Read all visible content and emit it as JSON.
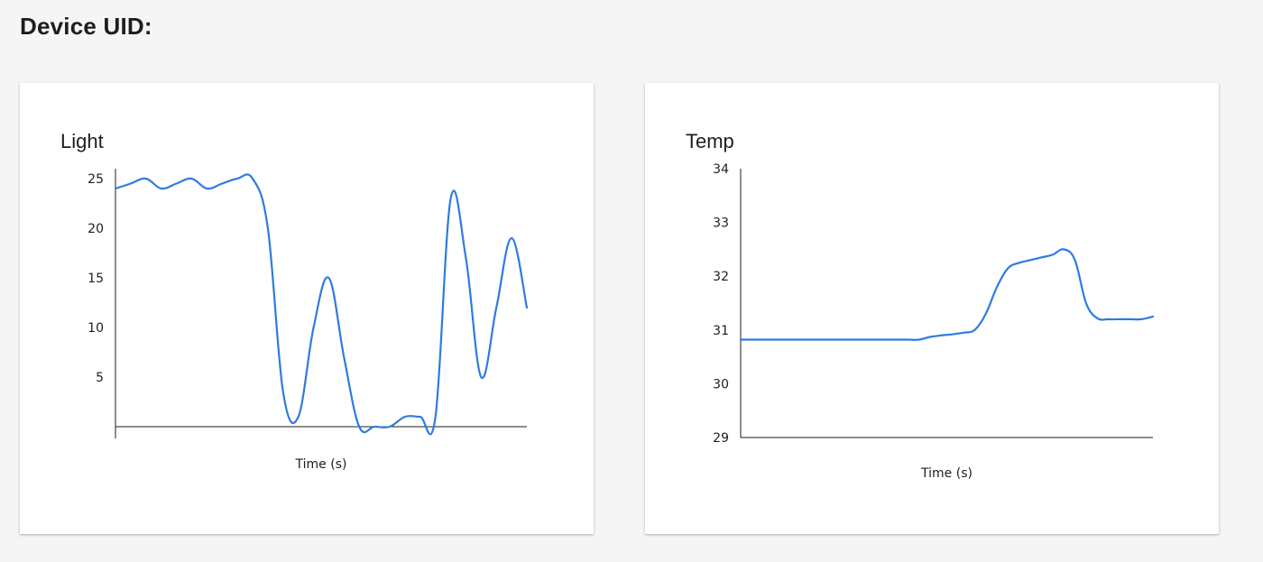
{
  "header": {
    "title": "Device UID:"
  },
  "colors": {
    "line": "#2f7be0",
    "axis": "#1e1e1e",
    "background": "#f5f5f5",
    "card": "#ffffff"
  },
  "charts": [
    {
      "id": "light",
      "title": "Light",
      "chart_data": {
        "type": "line",
        "title": "Light",
        "xlabel": "Time (s)",
        "ylabel": "",
        "ylim": [
          0,
          26
        ],
        "yticks": [
          5,
          10,
          15,
          20,
          25
        ],
        "series": [
          {
            "name": "Light",
            "values": [
              24,
              24.5,
              25,
              24,
              24.5,
              25,
              24,
              24.5,
              25,
              25,
              20,
              3.5,
              1,
              10,
              15,
              7,
              0,
              0,
              0,
              1,
              1,
              1,
              23,
              17,
              5,
              12,
              19,
              12
            ]
          }
        ]
      }
    },
    {
      "id": "temp",
      "title": "Temp",
      "chart_data": {
        "type": "line",
        "title": "Temp",
        "xlabel": "Time (s)",
        "ylabel": "",
        "ylim": [
          29,
          34
        ],
        "yticks": [
          29,
          30,
          31,
          32,
          33,
          34
        ],
        "series": [
          {
            "name": "Temp",
            "values": [
              30.82,
              30.82,
              30.82,
              30.82,
              30.82,
              30.82,
              30.82,
              30.82,
              30.82,
              30.82,
              30.82,
              30.82,
              30.82,
              30.82,
              30.82,
              30.82,
              30.82,
              30.87,
              30.9,
              30.92,
              30.95,
              31.0,
              31.3,
              31.8,
              32.15,
              32.25,
              32.3,
              32.35,
              32.4,
              32.5,
              32.3,
              31.5,
              31.22,
              31.2,
              31.2,
              31.2,
              31.2,
              31.25
            ]
          }
        ]
      }
    }
  ]
}
